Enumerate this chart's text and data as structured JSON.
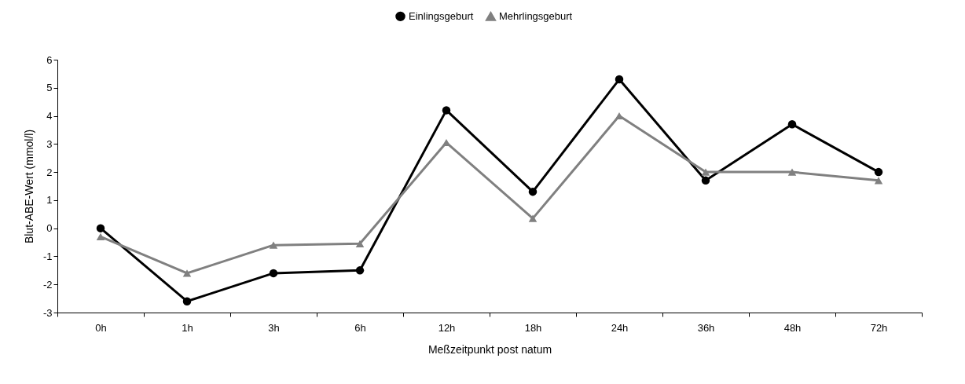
{
  "chart_data": {
    "type": "line",
    "xlabel": "Meßzeitpunkt post natum",
    "ylabel": "Blut-ABE-Wert (mmol/l)",
    "categories": [
      "0h",
      "1h",
      "3h",
      "6h",
      "12h",
      "18h",
      "24h",
      "36h",
      "48h",
      "72h"
    ],
    "series": [
      {
        "name": "Einlingsgeburt",
        "color": "#000000",
        "marker": "circle",
        "values": [
          0,
          -2.6,
          -1.6,
          -1.5,
          4.2,
          1.3,
          5.3,
          1.7,
          3.7,
          2.0
        ]
      },
      {
        "name": "Mehrlingsgeburt",
        "color": "#808080",
        "marker": "triangle",
        "values": [
          -0.3,
          -1.6,
          -0.6,
          -0.55,
          3.05,
          0.35,
          4.0,
          2.0,
          2.0,
          1.7
        ]
      }
    ],
    "ylim": [
      -3,
      6
    ],
    "yticks": [
      -3,
      -2,
      -1,
      0,
      1,
      2,
      3,
      4,
      5,
      6
    ],
    "grid": false,
    "legend": "top"
  }
}
